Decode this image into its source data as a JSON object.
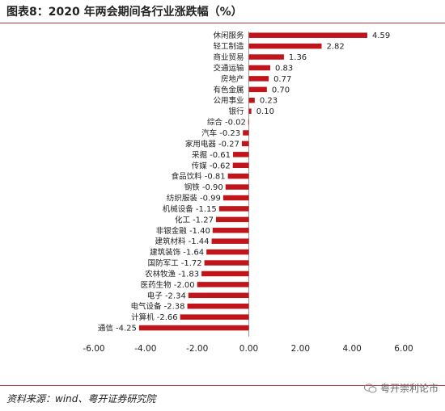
{
  "header": {
    "title": "图表8：2020 年两会期间各行业涨跌幅（%）"
  },
  "footer": {
    "source": "资料来源：wind、粤开证券研究院",
    "watermark": "粤开崇利论市"
  },
  "chart_data": {
    "type": "bar",
    "orientation": "horizontal",
    "title": "图表8：2020 年两会期间各行业涨跌幅（%）",
    "xlabel": "",
    "ylabel": "",
    "xlim": [
      -6.0,
      6.0
    ],
    "x_ticks": [
      -6.0,
      -4.0,
      -2.0,
      0.0,
      2.0,
      4.0,
      6.0
    ],
    "x_tick_labels": [
      "-6.00",
      "-4.00",
      "-2.00",
      "0.00",
      "2.00",
      "4.00",
      "6.00"
    ],
    "grid": false,
    "legend": "none",
    "bar_color": "#c0161b",
    "categories": [
      "休闲服务",
      "轻工制造",
      "商业贸易",
      "交通运输",
      "房地产",
      "有色金属",
      "公用事业",
      "银行",
      "综合",
      "汽车",
      "家用电器",
      "采掘",
      "传媒",
      "食品饮料",
      "钢铁",
      "纺织服装",
      "机械设备",
      "化工",
      "非银金融",
      "建筑材料",
      "建筑装饰",
      "国防军工",
      "农林牧渔",
      "医药生物",
      "电子",
      "电气设备",
      "计算机",
      "通信"
    ],
    "values": [
      4.59,
      2.82,
      1.36,
      0.83,
      0.77,
      0.7,
      0.23,
      0.1,
      -0.02,
      -0.23,
      -0.27,
      -0.61,
      -0.62,
      -0.81,
      -0.9,
      -0.99,
      -1.15,
      -1.27,
      -1.4,
      -1.44,
      -1.64,
      -1.72,
      -1.83,
      -2.0,
      -2.34,
      -2.38,
      -2.66,
      -4.25
    ],
    "value_labels": [
      "4.59",
      "2.82",
      "1.36",
      "0.83",
      "0.77",
      "0.70",
      "0.23",
      "0.10",
      "-0.02",
      "-0.23",
      "-0.27",
      "-0.61",
      "-0.62",
      "-0.81",
      "-0.90",
      "-0.99",
      "-1.15",
      "-1.27",
      "-1.40",
      "-1.44",
      "-1.64",
      "-1.72",
      "-1.83",
      "-2.00",
      "-2.34",
      "-2.38",
      "-2.66",
      "-4.25"
    ]
  }
}
